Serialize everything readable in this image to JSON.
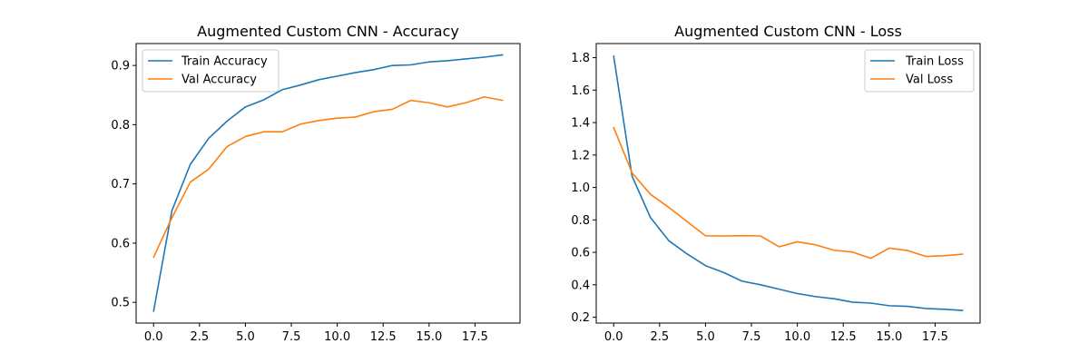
{
  "chart_data": [
    {
      "type": "line",
      "title": "Augmented Custom CNN - Accuracy",
      "xlabel": "",
      "ylabel": "",
      "xlim": [
        -0.95,
        19.95
      ],
      "ylim": [
        0.465,
        0.937
      ],
      "xticks": [
        0.0,
        2.5,
        5.0,
        7.5,
        10.0,
        12.5,
        15.0,
        17.5
      ],
      "xtick_labels": [
        "0.0",
        "2.5",
        "5.0",
        "7.5",
        "10.0",
        "12.5",
        "15.0",
        "17.5"
      ],
      "yticks": [
        0.5,
        0.6,
        0.7,
        0.8,
        0.9
      ],
      "ytick_labels": [
        "0.5",
        "0.6",
        "0.7",
        "0.8",
        "0.9"
      ],
      "legend_position": "top-left",
      "grid": false,
      "x": [
        0,
        1,
        2,
        3,
        4,
        5,
        6,
        7,
        8,
        9,
        10,
        11,
        12,
        13,
        14,
        15,
        16,
        17,
        18,
        19
      ],
      "series": [
        {
          "name": "Train Accuracy",
          "color": "#1f77b4",
          "values": [
            0.485,
            0.655,
            0.733,
            0.777,
            0.806,
            0.83,
            0.842,
            0.859,
            0.867,
            0.876,
            0.882,
            0.888,
            0.893,
            0.9,
            0.901,
            0.906,
            0.908,
            0.911,
            0.914,
            0.918
          ]
        },
        {
          "name": "Val Accuracy",
          "color": "#ff7f0e",
          "values": [
            0.576,
            0.643,
            0.703,
            0.725,
            0.763,
            0.78,
            0.788,
            0.788,
            0.801,
            0.807,
            0.811,
            0.813,
            0.822,
            0.826,
            0.841,
            0.837,
            0.83,
            0.837,
            0.847,
            0.841
          ]
        }
      ]
    },
    {
      "type": "line",
      "title": "Augmented Custom CNN - Loss",
      "xlabel": "",
      "ylabel": "",
      "xlim": [
        -0.95,
        19.95
      ],
      "ylim": [
        0.164,
        1.887
      ],
      "xticks": [
        0.0,
        2.5,
        5.0,
        7.5,
        10.0,
        12.5,
        15.0,
        17.5
      ],
      "xtick_labels": [
        "0.0",
        "2.5",
        "5.0",
        "7.5",
        "10.0",
        "12.5",
        "15.0",
        "17.5"
      ],
      "yticks": [
        0.2,
        0.4,
        0.6,
        0.8,
        1.0,
        1.2,
        1.4,
        1.6,
        1.8
      ],
      "ytick_labels": [
        "0.2",
        "0.4",
        "0.6",
        "0.8",
        "1.0",
        "1.2",
        "1.4",
        "1.6",
        "1.8"
      ],
      "legend_position": "top-right",
      "grid": false,
      "x": [
        0,
        1,
        2,
        3,
        4,
        5,
        6,
        7,
        8,
        9,
        10,
        11,
        12,
        13,
        14,
        15,
        16,
        17,
        18,
        19
      ],
      "series": [
        {
          "name": "Train Loss",
          "color": "#1f77b4",
          "values": [
            1.81,
            1.07,
            0.815,
            0.672,
            0.59,
            0.518,
            0.475,
            0.422,
            0.4,
            0.373,
            0.346,
            0.327,
            0.314,
            0.293,
            0.287,
            0.271,
            0.267,
            0.254,
            0.249,
            0.242
          ]
        },
        {
          "name": "Val Loss",
          "color": "#ff7f0e",
          "values": [
            1.37,
            1.09,
            0.958,
            0.877,
            0.789,
            0.702,
            0.701,
            0.703,
            0.701,
            0.634,
            0.665,
            0.646,
            0.613,
            0.602,
            0.563,
            0.626,
            0.611,
            0.575,
            0.579,
            0.589
          ]
        }
      ]
    }
  ]
}
